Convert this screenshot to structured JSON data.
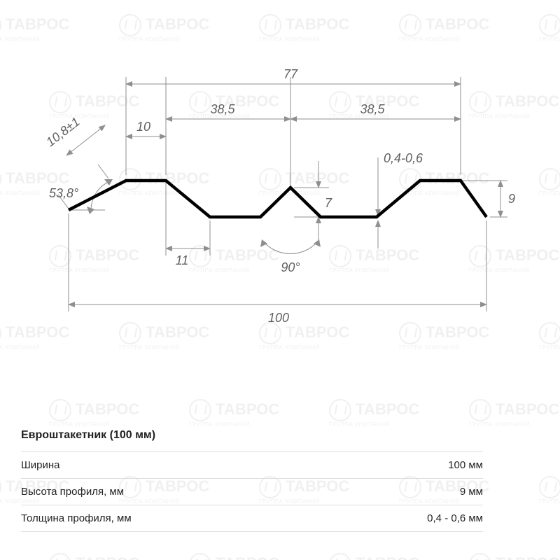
{
  "watermark": {
    "title": "ТАВРОС",
    "subtitle": "ГРУППА КОМПАНИЙ"
  },
  "diagram": {
    "type": "engineering-profile",
    "profile_color": "#000000",
    "profile_stroke_width": 4.5,
    "dim_color": "#8f8f8f",
    "dim_font_style": "italic",
    "dim_fontsize": 18,
    "background_color": "#ffffff",
    "dimensions": {
      "top_span": "77",
      "half_span_left": "38,5",
      "half_span_right": "38,5",
      "top_flat": "10",
      "left_edge_len": "10,8±1",
      "left_angle": "53,8°",
      "bottom_offset": "11",
      "center_angle": "90°",
      "center_height": "7",
      "thickness": "0,4-0,6",
      "right_height": "9",
      "overall": "100"
    }
  },
  "spec": {
    "title": "Евроштакетник (100 мм)",
    "rows": [
      {
        "label": "Ширина",
        "value": "100 мм"
      },
      {
        "label": "Высота профиля, мм",
        "value": "9 мм"
      },
      {
        "label": "Толщина профиля, мм",
        "value": "0,4 - 0,6 мм"
      }
    ]
  }
}
